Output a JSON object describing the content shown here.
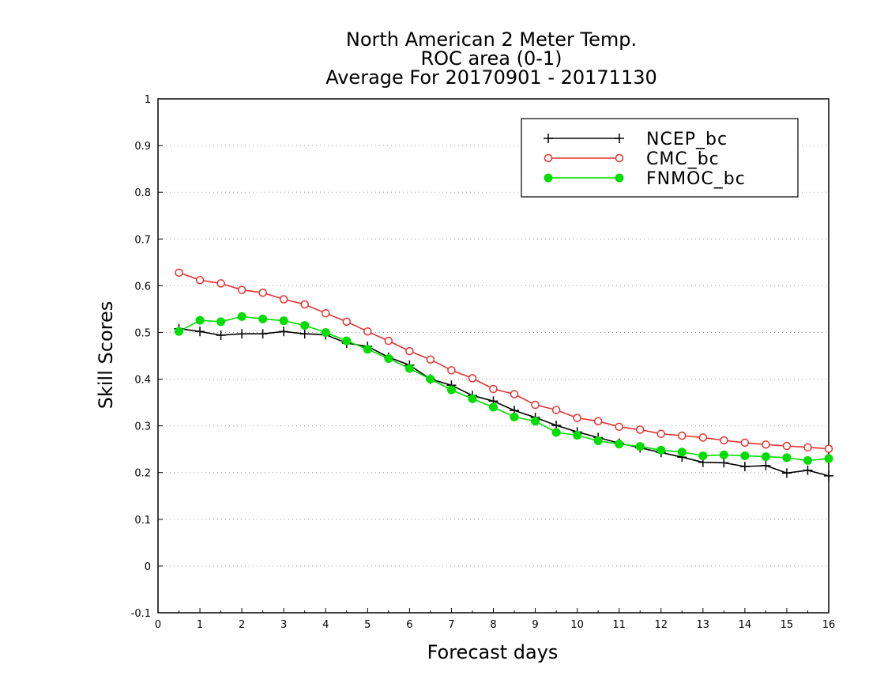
{
  "chart_data": {
    "type": "line",
    "title": [
      "North American 2 Meter Temp.",
      "ROC area (0-1)",
      "Average For 20170901 - 20171130"
    ],
    "xlabel": "Forecast days",
    "ylabel": "Skill Scores",
    "xlim": [
      0,
      16
    ],
    "ylim": [
      -0.1,
      1
    ],
    "xticks": [
      0,
      1,
      2,
      3,
      4,
      5,
      6,
      7,
      8,
      9,
      10,
      11,
      12,
      13,
      14,
      15,
      16
    ],
    "xtick_labels": [
      "0",
      "1",
      "2",
      "3",
      "4",
      "5",
      "6",
      "7",
      "8",
      "9",
      "10",
      "11",
      "12",
      "13",
      "14",
      "15",
      "16"
    ],
    "yticks": [
      -0.1,
      0,
      0.1,
      0.2,
      0.3,
      0.4,
      0.5,
      0.6,
      0.7,
      0.8,
      0.9,
      1
    ],
    "ytick_labels": [
      "-0.1",
      "0",
      "0.1",
      "0.2",
      "0.3",
      "0.4",
      "0.5",
      "0.6",
      "0.7",
      "0.8",
      "0.9",
      "1"
    ],
    "grid": "horizontal-dotted",
    "legend_position": "top-right",
    "x": [
      0.5,
      1,
      1.5,
      2,
      2.5,
      3,
      3.5,
      4,
      4.5,
      5,
      5.5,
      6,
      6.5,
      7,
      7.5,
      8,
      8.5,
      9,
      9.5,
      10,
      10.5,
      11,
      11.5,
      12,
      12.5,
      13,
      13.5,
      14,
      14.5,
      15,
      15.5,
      16
    ],
    "series": [
      {
        "name": "NCEP_bc",
        "color": "#000000",
        "marker": "plus",
        "values": [
          0.508,
          0.502,
          0.494,
          0.497,
          0.497,
          0.502,
          0.497,
          0.495,
          0.477,
          0.47,
          0.447,
          0.43,
          0.4,
          0.387,
          0.365,
          0.353,
          0.333,
          0.318,
          0.301,
          0.287,
          0.275,
          0.263,
          0.253,
          0.243,
          0.233,
          0.222,
          0.221,
          0.213,
          0.215,
          0.199,
          0.205,
          0.193
        ]
      },
      {
        "name": "CMC_bc",
        "color": "#e83030",
        "marker": "open-circle",
        "values": [
          0.628,
          0.612,
          0.605,
          0.591,
          0.585,
          0.571,
          0.56,
          0.541,
          0.523,
          0.502,
          0.482,
          0.46,
          0.442,
          0.419,
          0.402,
          0.379,
          0.368,
          0.345,
          0.334,
          0.317,
          0.31,
          0.298,
          0.292,
          0.283,
          0.279,
          0.275,
          0.269,
          0.264,
          0.26,
          0.257,
          0.254,
          0.251
        ]
      },
      {
        "name": "FNMOC_bc",
        "color": "#00dd00",
        "marker": "filled-circle",
        "values": [
          0.502,
          0.526,
          0.523,
          0.534,
          0.529,
          0.525,
          0.515,
          0.5,
          0.482,
          0.464,
          0.444,
          0.423,
          0.4,
          0.377,
          0.358,
          0.34,
          0.319,
          0.31,
          0.286,
          0.28,
          0.268,
          0.261,
          0.256,
          0.248,
          0.244,
          0.236,
          0.238,
          0.236,
          0.234,
          0.232,
          0.226,
          0.23
        ]
      }
    ]
  }
}
